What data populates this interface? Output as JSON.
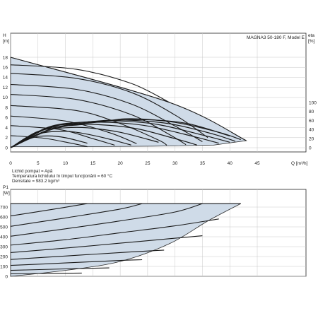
{
  "chart_data": [
    {
      "type": "line",
      "title": "MAGNA3 50-180 F, Model E",
      "xlabel": "Q [m³/h]",
      "ylabel": "H [m]",
      "y2label": "eta [%]",
      "xlim": [
        0,
        50
      ],
      "ylim": [
        0,
        20
      ],
      "y2lim": [
        0,
        140
      ],
      "x_ticks": [
        "0",
        "5",
        "10",
        "15",
        "20",
        "25",
        "30",
        "35",
        "40",
        "45"
      ],
      "y_ticks": [
        "0",
        "2",
        "4",
        "6",
        "8",
        "10",
        "12",
        "14",
        "16",
        "18"
      ],
      "y2_ticks": [
        "0",
        "20",
        "40",
        "60",
        "80",
        "100"
      ],
      "grid": true,
      "operating_area": [
        [
          0,
          18
        ],
        [
          29,
          9
        ],
        [
          43,
          1.4
        ],
        [
          37,
          0.5
        ],
        [
          26,
          0.3
        ],
        [
          13,
          0.2
        ],
        [
          0,
          0.2
        ]
      ],
      "head_curves": [
        [
          [
            0,
            18
          ],
          [
            29,
            9
          ],
          [
            43,
            1.4
          ]
        ],
        [
          [
            0,
            16.5
          ],
          [
            12,
            15.6
          ],
          [
            22,
            12.8
          ],
          [
            29,
            9
          ]
        ],
        [
          [
            0,
            14.8
          ],
          [
            12,
            13.8
          ],
          [
            22,
            11.0
          ],
          [
            30,
            6.5
          ],
          [
            36,
            2.0
          ]
        ],
        [
          [
            0,
            12.6
          ],
          [
            12,
            11.6
          ],
          [
            22,
            8.7
          ],
          [
            30,
            4.3
          ],
          [
            35,
            1.2
          ]
        ],
        [
          [
            0,
            10.6
          ],
          [
            12,
            9.6
          ],
          [
            22,
            6.6
          ],
          [
            29,
            2.6
          ],
          [
            32,
            0.6
          ]
        ],
        [
          [
            0,
            8.4
          ],
          [
            12,
            7.4
          ],
          [
            20,
            4.8
          ],
          [
            27,
            1.5
          ],
          [
            28.5,
            0.5
          ]
        ],
        [
          [
            0,
            6.3
          ],
          [
            10,
            5.3
          ],
          [
            18,
            3.0
          ],
          [
            23,
            0.8
          ]
        ],
        [
          [
            0,
            4.4
          ],
          [
            9,
            3.6
          ],
          [
            15,
            1.8
          ],
          [
            19,
            0.5
          ]
        ],
        [
          [
            0,
            2.4
          ],
          [
            6,
            1.9
          ],
          [
            11,
            0.9
          ],
          [
            14,
            0.2
          ]
        ]
      ],
      "eta_curves": [
        [
          [
            0,
            0
          ],
          [
            8,
            42
          ],
          [
            17,
            58
          ],
          [
            22,
            64
          ],
          [
            30,
            56
          ],
          [
            38,
            34
          ],
          [
            42,
            18
          ]
        ],
        [
          [
            0,
            0
          ],
          [
            8,
            44
          ],
          [
            17,
            58
          ],
          [
            24,
            62
          ],
          [
            32,
            54
          ],
          [
            40,
            26
          ]
        ],
        [
          [
            0,
            0
          ],
          [
            7,
            45
          ],
          [
            15,
            58
          ],
          [
            21,
            61
          ],
          [
            29,
            53
          ],
          [
            37,
            30
          ],
          [
            41,
            14
          ]
        ],
        [
          [
            0,
            0
          ],
          [
            7,
            46
          ],
          [
            14,
            57
          ],
          [
            20,
            59
          ],
          [
            27,
            51
          ],
          [
            35,
            28
          ],
          [
            40,
            12
          ]
        ],
        [
          [
            0,
            0
          ],
          [
            7,
            44
          ],
          [
            13,
            54
          ],
          [
            18,
            56
          ],
          [
            25,
            48
          ],
          [
            33,
            26
          ],
          [
            38,
            10
          ]
        ],
        [
          [
            0,
            0
          ],
          [
            6,
            40
          ],
          [
            12,
            50
          ],
          [
            16,
            51
          ],
          [
            23,
            42
          ],
          [
            30,
            20
          ],
          [
            34,
            6
          ]
        ],
        [
          [
            0,
            0
          ],
          [
            5,
            36
          ],
          [
            10,
            44
          ],
          [
            14,
            44
          ],
          [
            20,
            34
          ],
          [
            27,
            12
          ]
        ],
        [
          [
            0,
            0
          ],
          [
            5,
            30
          ],
          [
            9,
            36
          ],
          [
            12,
            34
          ],
          [
            17,
            22
          ],
          [
            22,
            6
          ]
        ],
        [
          [
            0,
            0
          ],
          [
            4,
            22
          ],
          [
            7,
            26
          ],
          [
            10,
            22
          ],
          [
            14,
            10
          ]
        ]
      ]
    },
    {
      "type": "line",
      "ylabel": "P1 [W]",
      "xlim": [
        0,
        50
      ],
      "ylim": [
        0,
        750
      ],
      "y_ticks": [
        "0",
        "100",
        "200",
        "300",
        "400",
        "500",
        "600",
        "700"
      ],
      "grid": true,
      "operating_area": [
        [
          0,
          735
        ],
        [
          42,
          735
        ],
        [
          36,
          560
        ],
        [
          29,
          330
        ],
        [
          20,
          150
        ],
        [
          10,
          60
        ],
        [
          0,
          0
        ]
      ],
      "power_curves": [
        [
          [
            0,
            735
          ],
          [
            42,
            735
          ]
        ],
        [
          [
            0,
            610
          ],
          [
            8,
            680
          ],
          [
            14,
            735
          ]
        ],
        [
          [
            0,
            505
          ],
          [
            10,
            590
          ],
          [
            20,
            680
          ],
          [
            24,
            735
          ]
        ],
        [
          [
            0,
            405
          ],
          [
            10,
            480
          ],
          [
            20,
            560
          ],
          [
            30,
            650
          ],
          [
            35,
            735
          ]
        ],
        [
          [
            0,
            315
          ],
          [
            10,
            370
          ],
          [
            20,
            440
          ],
          [
            30,
            510
          ],
          [
            38,
            580
          ]
        ],
        [
          [
            0,
            240
          ],
          [
            10,
            285
          ],
          [
            20,
            335
          ],
          [
            30,
            385
          ],
          [
            35,
            410
          ]
        ],
        [
          [
            0,
            170
          ],
          [
            10,
            205
          ],
          [
            20,
            240
          ],
          [
            28,
            265
          ]
        ],
        [
          [
            0,
            110
          ],
          [
            10,
            135
          ],
          [
            20,
            160
          ],
          [
            24,
            168
          ]
        ],
        [
          [
            0,
            60
          ],
          [
            10,
            75
          ],
          [
            18,
            85
          ]
        ],
        [
          [
            0,
            25
          ],
          [
            8,
            30
          ],
          [
            13,
            33
          ]
        ]
      ]
    }
  ],
  "info": {
    "line1": "Lichid pompat = Apă",
    "line2": "Temperatura lichidului în timpul funcţionării = 60 °C",
    "line3": "Densitate = 983.2 kg/m³"
  },
  "labels": {
    "h_top": "H",
    "h_unit": "[m]",
    "eta_top": "eta",
    "eta_unit": "[%]",
    "q_label": "Q [m³/h]",
    "p_top": "P1",
    "p_unit": "[W]"
  }
}
